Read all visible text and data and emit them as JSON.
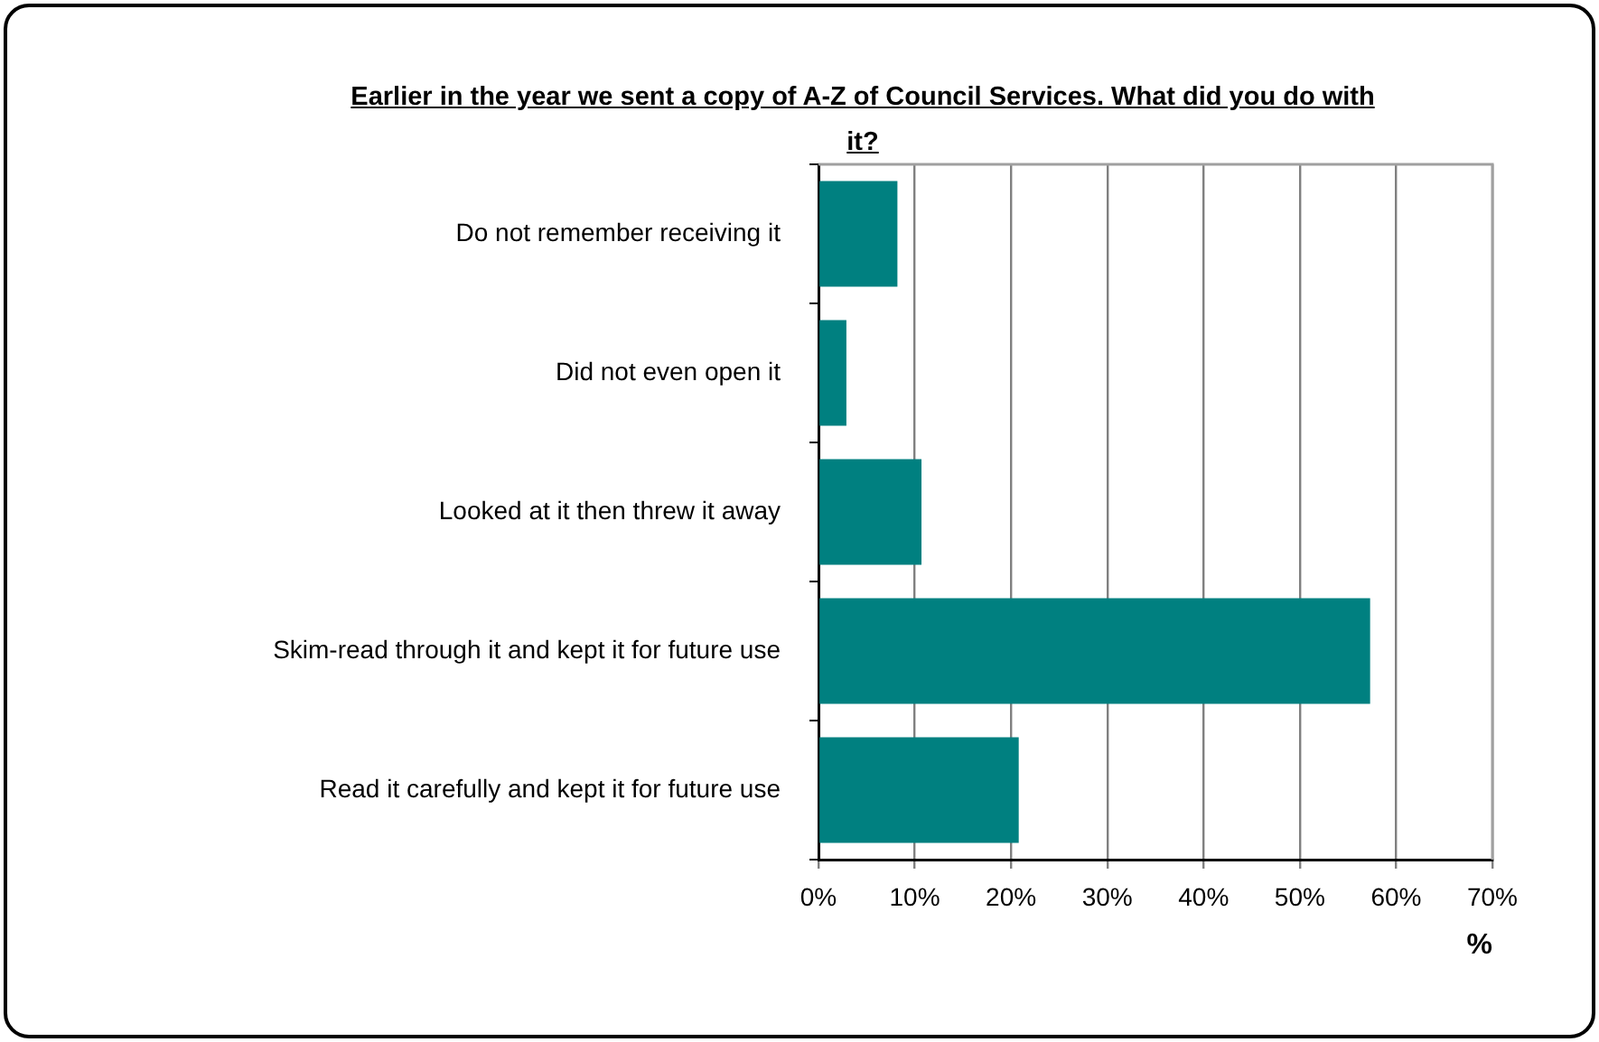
{
  "chart_data": {
    "type": "bar",
    "orientation": "horizontal",
    "title": "Earlier in the year we sent a copy of A-Z of Council Services. What did you do with it?",
    "xlabel": "%",
    "categories": [
      "Do not remember receiving it",
      "Did not even open it",
      "Looked at it then threw it away",
      "Skim-read through it and kept it for future use",
      "Read it carefully and kept it for future use"
    ],
    "values": [
      8.2,
      2.9,
      10.7,
      57.3,
      20.8
    ],
    "color": "#008080",
    "xlim": [
      0,
      70
    ],
    "xticks": [
      {
        "value": 0,
        "label": "0%"
      },
      {
        "value": 10,
        "label": "10%"
      },
      {
        "value": 20,
        "label": "20%"
      },
      {
        "value": 30,
        "label": "30%"
      },
      {
        "value": 40,
        "label": "40%"
      },
      {
        "value": 50,
        "label": "50%"
      },
      {
        "value": 60,
        "label": "60%"
      },
      {
        "value": 70,
        "label": "70%"
      }
    ],
    "grid": "x",
    "legend": false
  }
}
